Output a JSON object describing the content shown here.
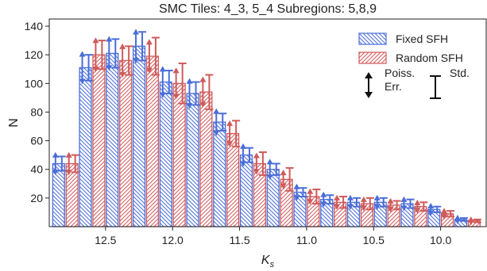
{
  "chart_data": {
    "type": "bar",
    "title": "SMC Tiles: 4_3, 5_4 Subregions: 5,8,9",
    "xlabel": "K",
    "xlabel_sub": "s",
    "ylabel": "N",
    "xlim": [
      12.92,
      9.66
    ],
    "ylim": [
      0,
      145
    ],
    "x_inverted": true,
    "grid": false,
    "legend_position": "top-right",
    "xticks": [
      12.5,
      12.0,
      11.5,
      11.0,
      10.5,
      10.0
    ],
    "yticks": [
      20,
      40,
      60,
      80,
      100,
      120,
      140
    ],
    "x": [
      12.8,
      12.6,
      12.4,
      12.2,
      12.0,
      11.8,
      11.6,
      11.4,
      11.2,
      11.0,
      10.8,
      10.6,
      10.4,
      10.2,
      10.0,
      9.8
    ],
    "series": [
      {
        "name": "Fixed SFH",
        "color": "#4a6ed8",
        "hatch": "backslash",
        "values": [
          44,
          111,
          121,
          126,
          101,
          93,
          73,
          50,
          40,
          24,
          19,
          17,
          17,
          16,
          12,
          5
        ],
        "poisson_err": [
          7,
          10.5,
          11,
          11,
          10,
          9.6,
          8.5,
          7.1,
          6.3,
          4.9,
          4.4,
          4.1,
          4.1,
          4,
          3.5,
          2.2
        ],
        "std_err": [
          5,
          9,
          10,
          10,
          8,
          8,
          6,
          5,
          4,
          3,
          3,
          3,
          3,
          3,
          2,
          1
        ]
      },
      {
        "name": "Random SFH",
        "color": "#d05a5a",
        "hatch": "slash",
        "values": [
          44,
          120,
          116,
          119,
          100,
          94,
          65,
          44,
          33,
          21,
          17,
          16,
          15,
          14,
          9,
          4
        ],
        "poisson_err": [
          7,
          11,
          10.8,
          10.9,
          10,
          9.7,
          8.1,
          6.6,
          5.7,
          4.6,
          4.1,
          4,
          3.9,
          3.7,
          3,
          2
        ],
        "std_err": [
          6,
          10,
          10,
          13,
          14,
          12,
          9,
          8,
          8,
          5,
          4,
          4,
          3,
          3,
          2,
          1
        ]
      }
    ],
    "legend_notes": {
      "poisson_line1": "Poiss.",
      "poisson_line2": "Err.",
      "std_label": "Std."
    }
  }
}
